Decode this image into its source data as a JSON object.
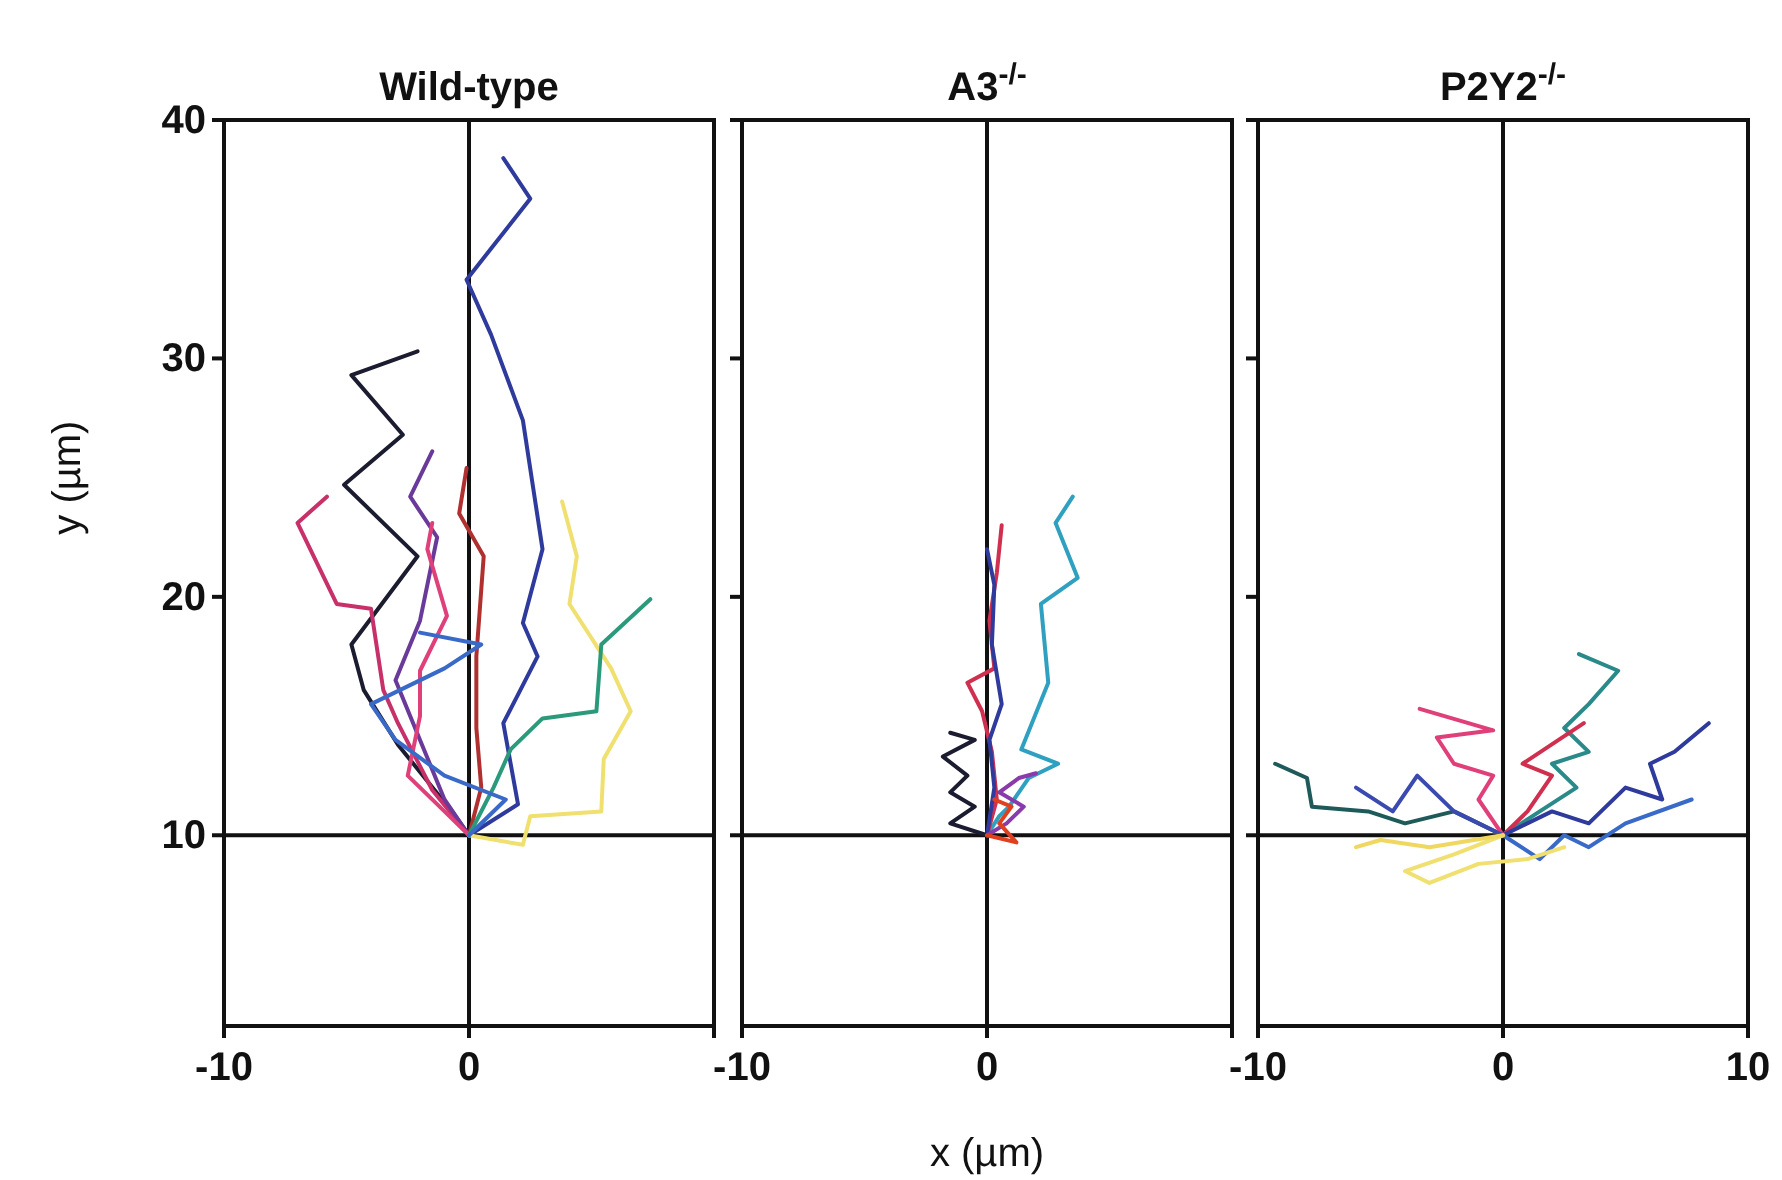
{
  "chart_data": [
    {
      "type": "line",
      "title": "Wild-type",
      "ylabel": "y (µm)",
      "xlim": [
        -10,
        10
      ],
      "ylim": [
        2,
        40
      ],
      "xticks": [
        -10,
        0,
        {
          "value": 10,
          "label": null
        }
      ],
      "yticks": [
        10,
        20,
        30,
        40
      ],
      "ref_lines": [
        {
          "axis": "x",
          "value": 0
        },
        {
          "axis": "y",
          "value": 10
        }
      ],
      "series": [
        {
          "color": "#2e3a9c",
          "x": [
            0,
            2,
            1.4,
            2.8,
            2.2,
            3,
            2.2,
            0.9,
            -0.1,
            2.5,
            1.4
          ],
          "values": [
            10,
            11.3,
            14.7,
            17.5,
            18.9,
            22,
            27.4,
            31,
            33.3,
            36.7,
            38.4
          ]
        },
        {
          "color": "#1c1c30",
          "x": [
            0,
            -0.7,
            -2.9,
            -4.3,
            -4.8,
            -2.1,
            -5.1,
            -2.7,
            -4.8,
            -2.1
          ],
          "values": [
            10,
            11,
            13.8,
            16.1,
            18,
            21.7,
            24.7,
            26.8,
            29.3,
            30.3
          ]
        },
        {
          "color": "#c8306a",
          "x": [
            0,
            -1.5,
            -2.9,
            -3.5,
            -4,
            -5.4,
            -7,
            -5.8
          ],
          "values": [
            10,
            11.9,
            14.7,
            16.1,
            19.5,
            19.7,
            23.1,
            24.2
          ]
        },
        {
          "color": "#6a3a9a",
          "x": [
            0,
            -1,
            -2,
            -3,
            -2,
            -1.3,
            -2.4,
            -1.5
          ],
          "values": [
            10,
            11.5,
            14,
            16.5,
            19,
            22.5,
            24.2,
            26.1
          ]
        },
        {
          "color": "#b03030",
          "x": [
            0,
            0.5,
            0.3,
            0.3,
            0.6,
            -0.4,
            -0.1
          ],
          "values": [
            10,
            12,
            14.5,
            17.5,
            21.7,
            23.5,
            25.4
          ]
        },
        {
          "color": "#e0407a",
          "x": [
            0,
            -1,
            -2.5,
            -2,
            -2,
            -0.9,
            -1.7,
            -1.5
          ],
          "values": [
            10,
            11,
            12.5,
            15,
            16.9,
            19.2,
            22,
            23.1
          ]
        },
        {
          "color": "#f0e070",
          "x": [
            0,
            2.2,
            2.5,
            5.4,
            5.5,
            6.6,
            5.8,
            4.1,
            4.4,
            3.8
          ],
          "values": [
            10,
            9.6,
            10.8,
            11,
            13.2,
            15.2,
            17,
            19.7,
            21.7,
            24
          ]
        },
        {
          "color": "#2a9a7a",
          "x": [
            0,
            1,
            1.7,
            3,
            5.2,
            5.4,
            7.4
          ],
          "values": [
            10,
            12,
            13.6,
            14.9,
            15.2,
            18,
            19.9
          ]
        },
        {
          "color": "#3a6ac8",
          "x": [
            0,
            1.5,
            -1,
            -3,
            -4,
            -1,
            0.5,
            -2
          ],
          "values": [
            10,
            11.5,
            12.5,
            14,
            15.5,
            17,
            18,
            18.5
          ]
        }
      ]
    },
    {
      "type": "line",
      "title": "A3$^{-/-}$",
      "xlabel": "x (µm)",
      "xlim": [
        -10,
        10
      ],
      "ylim": [
        2,
        40
      ],
      "xticks": [
        -10,
        0,
        {
          "value": 10,
          "label": null
        }
      ],
      "yticks": [
        10,
        20,
        30,
        40
      ],
      "tick_labels": "x",
      "ref_lines": [
        {
          "axis": "x",
          "value": 0
        },
        {
          "axis": "y",
          "value": 10
        }
      ],
      "series": [
        {
          "color": "#30a0c0",
          "x": [
            0,
            0.5,
            0.9,
            1.7,
            2.9,
            1.4,
            2.5,
            2.2,
            3.7,
            2.8,
            3.5
          ],
          "values": [
            10,
            10.8,
            11.2,
            12.4,
            13,
            13.6,
            16.4,
            19.7,
            20.8,
            23.1,
            24.2
          ]
        },
        {
          "color": "#d03050",
          "x": [
            0,
            0.4,
            0.2,
            -0.2,
            -0.8,
            0.3,
            0.1,
            0.4,
            0.6
          ],
          "values": [
            10,
            11.5,
            13.5,
            15.2,
            16.4,
            17,
            19,
            21,
            23
          ]
        },
        {
          "color": "#2e3a9c",
          "x": [
            0,
            0.3,
            0.1,
            0.6,
            0.2,
            0.3,
            0
          ],
          "values": [
            10,
            12,
            14,
            15.5,
            18,
            20.5,
            22
          ]
        },
        {
          "color": "#1c1c30",
          "x": [
            0,
            -1.5,
            -0.5,
            -1.5,
            -0.8,
            -1.8,
            -0.5,
            -1.5
          ],
          "values": [
            10,
            10.5,
            11.2,
            11.8,
            12.5,
            13.3,
            14,
            14.3
          ]
        },
        {
          "color": "#8a3aaa",
          "x": [
            0,
            0.8,
            1.5,
            0.5,
            1.3,
            2
          ],
          "values": [
            10,
            10.5,
            11.2,
            11.8,
            12.4,
            12.6
          ]
        },
        {
          "color": "#e04020",
          "x": [
            0,
            1.2,
            0.5,
            1,
            0.3
          ],
          "values": [
            10,
            9.7,
            10.5,
            11.2,
            11.5
          ]
        }
      ]
    },
    {
      "type": "line",
      "title": "P2Y2$^{-/-}$",
      "xlim": [
        -10,
        10
      ],
      "ylim": [
        2,
        40
      ],
      "xticks": [
        -10,
        0,
        10
      ],
      "yticks": [
        10,
        20,
        30,
        40
      ],
      "tick_labels": "x",
      "ref_lines": [
        {
          "axis": "x",
          "value": 0
        },
        {
          "axis": "y",
          "value": 10
        }
      ],
      "series": [
        {
          "color": "#2a8a8a",
          "x": [
            0,
            1.5,
            3,
            2,
            3.5,
            2.5,
            3.5,
            4.7,
            3.1
          ],
          "values": [
            10,
            11,
            12,
            13,
            13.5,
            14.5,
            15.5,
            16.9,
            17.6
          ]
        },
        {
          "color": "#1f5a5a",
          "x": [
            0,
            -2,
            -4,
            -5.5,
            -7.8,
            -8,
            -9.3
          ],
          "values": [
            10,
            11,
            10.5,
            11,
            11.2,
            12.4,
            13
          ]
        },
        {
          "color": "#e0407a",
          "x": [
            0,
            -1,
            -0.4,
            -2,
            -2.7,
            -0.4,
            -3.4
          ],
          "values": [
            10,
            11.5,
            12.5,
            13,
            14.1,
            14.4,
            15.3
          ]
        },
        {
          "color": "#d03050",
          "x": [
            0,
            1,
            2,
            0.8,
            3.3
          ],
          "values": [
            10,
            11,
            12.5,
            13,
            14.7
          ]
        },
        {
          "color": "#2e3a9c",
          "x": [
            0,
            2,
            3.5,
            5,
            6.5,
            6,
            7,
            8.4
          ],
          "values": [
            10,
            11,
            10.5,
            12,
            11.5,
            13,
            13.5,
            14.7
          ]
        },
        {
          "color": "#3a4ab0",
          "x": [
            0,
            -2,
            -3.5,
            -4.5,
            -6
          ],
          "values": [
            10,
            11,
            12.5,
            11,
            12
          ]
        },
        {
          "color": "#3a6ac8",
          "x": [
            0,
            1.5,
            2.5,
            3.5,
            5,
            7.7
          ],
          "values": [
            10,
            9,
            10,
            9.5,
            10.5,
            11.5
          ]
        },
        {
          "color": "#f0e070",
          "x": [
            0,
            -2,
            -4,
            -3,
            -1,
            1,
            2.5
          ],
          "values": [
            10,
            9.2,
            8.5,
            8,
            8.8,
            9,
            9.5
          ]
        },
        {
          "color": "#f0d860",
          "x": [
            0,
            -3,
            -5,
            -6
          ],
          "values": [
            10,
            9.5,
            9.8,
            9.5
          ]
        }
      ]
    }
  ]
}
